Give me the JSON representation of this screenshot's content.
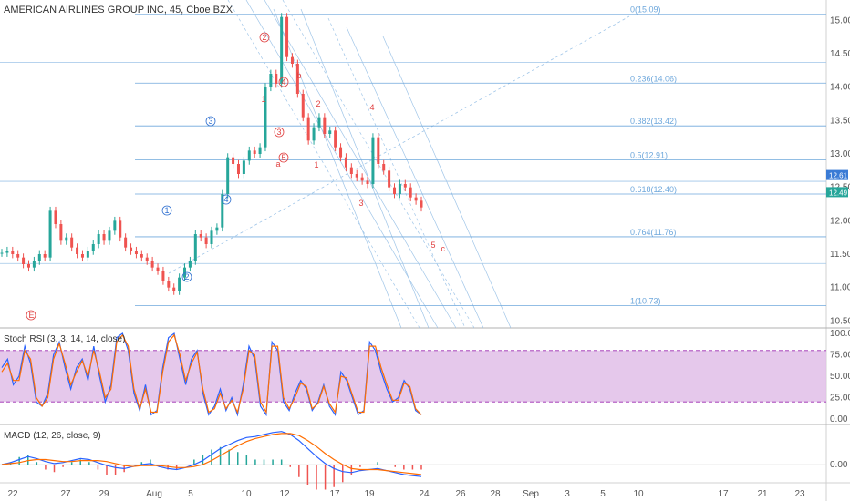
{
  "title": "AMERICAN AIRLINES GROUP INC, 45, Cboe BZX",
  "colors": {
    "up": "#26a69a",
    "down": "#ef5350",
    "fib": "#6fa8dc",
    "rsi_k": "#2962ff",
    "rsi_d": "#ff6d00",
    "rsi_band": "#e1bee7",
    "macd": "#2962ff",
    "signal": "#ff6d00"
  },
  "chart_data": [
    {
      "type": "candlestick",
      "title": "AMERICAN AIRLINES GROUP INC, 45, Cboe BZX",
      "ylim": [
        10.45,
        15.25
      ],
      "y_ticks": [
        "15.00",
        "14.50",
        "14.00",
        "13.50",
        "13.00",
        "12.50",
        "12.00",
        "11.50",
        "11.00",
        "10.50"
      ],
      "x_ticks": [
        "22",
        "27",
        "29",
        "Aug",
        "5",
        "10",
        "12",
        "17",
        "19",
        "24",
        "26",
        "28",
        "Sep",
        "3",
        "5",
        "10",
        "17",
        "21",
        "23"
      ],
      "price_labels": [
        "12.61",
        "12.49"
      ],
      "close_path": [
        11.52,
        11.55,
        11.5,
        11.45,
        11.35,
        11.3,
        11.4,
        11.5,
        11.45,
        12.15,
        11.95,
        11.7,
        11.75,
        11.6,
        11.5,
        11.45,
        11.55,
        11.65,
        11.8,
        11.7,
        11.85,
        12.0,
        11.75,
        11.6,
        11.55,
        11.5,
        11.45,
        11.4,
        11.3,
        11.25,
        11.1,
        11.0,
        10.95,
        11.15,
        11.3,
        11.4,
        11.8,
        11.75,
        11.65,
        11.85,
        11.9,
        12.4,
        12.95,
        12.85,
        12.7,
        12.9,
        13.05,
        13.0,
        13.1,
        14.0,
        14.2,
        14.05,
        15.05,
        14.45,
        14.35,
        13.9,
        13.55,
        13.2,
        13.4,
        13.55,
        13.3,
        13.35,
        13.1,
        12.95,
        12.8,
        12.7,
        12.65,
        12.6,
        12.55,
        13.25,
        12.85,
        12.75,
        12.5,
        12.4,
        12.55,
        12.5,
        12.35,
        12.3,
        12.2
      ],
      "fib_levels": [
        {
          "label": "0(15.09)",
          "value": 15.09
        },
        {
          "label": "0.236(14.06)",
          "value": 14.06
        },
        {
          "label": "0.382(13.42)",
          "value": 13.42
        },
        {
          "label": "0.5(12.91)",
          "value": 12.91
        },
        {
          "label": "0.618(12.40)",
          "value": 12.4
        },
        {
          "label": "0.764(11.76)",
          "value": 11.76
        },
        {
          "label": "1(10.73)",
          "value": 10.73
        }
      ],
      "wave_labels": [
        "E",
        "1",
        "2",
        "3",
        "4",
        "1",
        "2",
        "3",
        "4",
        "a",
        "b",
        "5",
        "1",
        "2",
        "3",
        "4",
        "5",
        "c"
      ]
    },
    {
      "type": "line",
      "title": "Stoch RSI (3, 3, 14, 14, close)",
      "ylim": [
        0,
        100
      ],
      "band": [
        20,
        80
      ],
      "y_ticks": [
        "100.00",
        "75.00",
        "50.00",
        "25.00",
        "0.00"
      ],
      "series": [
        {
          "values": [
            60,
            70,
            40,
            50,
            85,
            65,
            20,
            15,
            30,
            75,
            90,
            60,
            35,
            60,
            70,
            45,
            85,
            50,
            20,
            40,
            95,
            100,
            80,
            30,
            10,
            40,
            5,
            10,
            60,
            95,
            100,
            70,
            40,
            70,
            80,
            30,
            5,
            15,
            35,
            10,
            25,
            5,
            40,
            85,
            70,
            15,
            5,
            90,
            80,
            20,
            10,
            30,
            45,
            35,
            10,
            20,
            40,
            15,
            5,
            55,
            45,
            25,
            5,
            10,
            90,
            80,
            55,
            35,
            20,
            25,
            45,
            35,
            10,
            5
          ]
        },
        {
          "values": [
            55,
            65,
            45,
            45,
            80,
            70,
            25,
            15,
            25,
            70,
            88,
            65,
            40,
            55,
            68,
            50,
            80,
            55,
            25,
            35,
            90,
            98,
            85,
            35,
            12,
            35,
            8,
            8,
            55,
            90,
            98,
            75,
            45,
            65,
            78,
            35,
            8,
            12,
            30,
            12,
            22,
            8,
            35,
            80,
            75,
            20,
            8,
            85,
            85,
            25,
            12,
            25,
            42,
            38,
            12,
            18,
            38,
            18,
            8,
            50,
            48,
            28,
            8,
            8,
            85,
            85,
            60,
            40,
            22,
            22,
            42,
            38,
            12,
            5
          ]
        }
      ]
    },
    {
      "type": "line",
      "title": "MACD (12, 26, close, 9)",
      "y_ticks": [
        "0.00"
      ],
      "series": [
        {
          "values": [
            0.0,
            0.02,
            0.05,
            0.08,
            0.06,
            0.03,
            0.01,
            0.02,
            0.04,
            0.06,
            0.05,
            0.02,
            -0.01,
            -0.03,
            -0.04,
            -0.02,
            0.0,
            0.01,
            -0.02,
            -0.04,
            -0.05,
            -0.03,
            0.0,
            0.04,
            0.1,
            0.16,
            0.2,
            0.24,
            0.27,
            0.28,
            0.3,
            0.32,
            0.33,
            0.3,
            0.24,
            0.16,
            0.08,
            0.01,
            -0.04,
            -0.07,
            -0.08,
            -0.06,
            -0.05,
            -0.04,
            -0.06,
            -0.08,
            -0.1,
            -0.11,
            -0.12
          ]
        },
        {
          "values": [
            0.0,
            0.01,
            0.02,
            0.04,
            0.05,
            0.05,
            0.04,
            0.03,
            0.03,
            0.04,
            0.04,
            0.04,
            0.03,
            0.01,
            -0.01,
            -0.02,
            -0.01,
            -0.01,
            -0.01,
            -0.02,
            -0.03,
            -0.03,
            -0.02,
            0.0,
            0.04,
            0.09,
            0.14,
            0.19,
            0.23,
            0.26,
            0.28,
            0.3,
            0.31,
            0.31,
            0.29,
            0.24,
            0.18,
            0.11,
            0.05,
            0.0,
            -0.04,
            -0.05,
            -0.05,
            -0.05,
            -0.06,
            -0.07,
            -0.08,
            -0.09,
            -0.1
          ]
        }
      ]
    }
  ]
}
